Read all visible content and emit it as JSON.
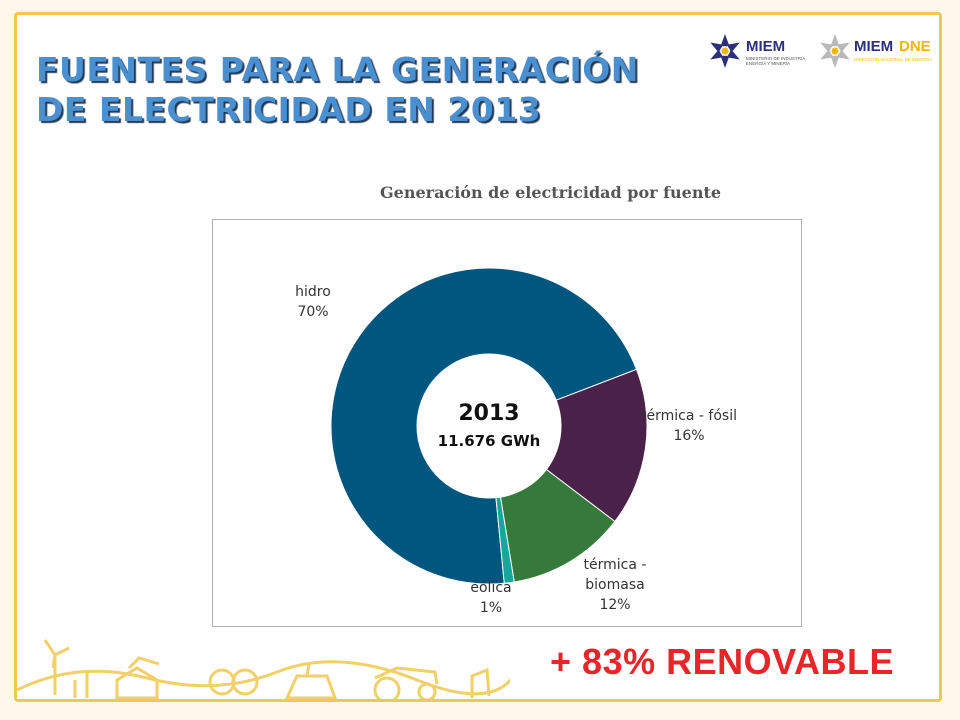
{
  "slide": {
    "title_line1": "FUENTES PARA LA GENERACIÓN",
    "title_line2": "DE ELECTRICIDAD EN 2013",
    "badge": "+ 83% RENOVABLE"
  },
  "logos": {
    "miem": "MIEM",
    "miem_sub1": "MINISTERIO DE INDUSTRIA,",
    "miem_sub2": "ENERGÍA Y MINERÍA",
    "miemdne_a": "MIEM",
    "miemdne_b": "DNE",
    "miemdne_sub": "DIRECCIÓN NACIONAL DE ENERGÍA"
  },
  "colors": {
    "hidro": "#00567e",
    "termica_fosil": "#4a2149",
    "termica_biomasa": "#357a3b",
    "eolica": "#16a79a",
    "title": "#4a8fd0",
    "badge": "#e8262a",
    "frame": "#f1c75a"
  },
  "chart_data": {
    "type": "pie",
    "donut": true,
    "title": "Generación de electricidad por fuente",
    "center_label_year": "2013",
    "center_label_total": "11.676 GWh",
    "slices": [
      {
        "name": "hidro",
        "value": 70,
        "label_line1": "hidro",
        "label_line2": "70%"
      },
      {
        "name": "térmica - fósil",
        "value": 16,
        "label_line1": "térmica - fósil",
        "label_line2": "16%"
      },
      {
        "name": "térmica - biomasa",
        "value": 12,
        "label_line1": "térmica -",
        "label_line2": "biomasa",
        "label_line3": "12%"
      },
      {
        "name": "eólica",
        "value": 1,
        "label_line1": "eólica",
        "label_line2": "1%"
      }
    ]
  }
}
